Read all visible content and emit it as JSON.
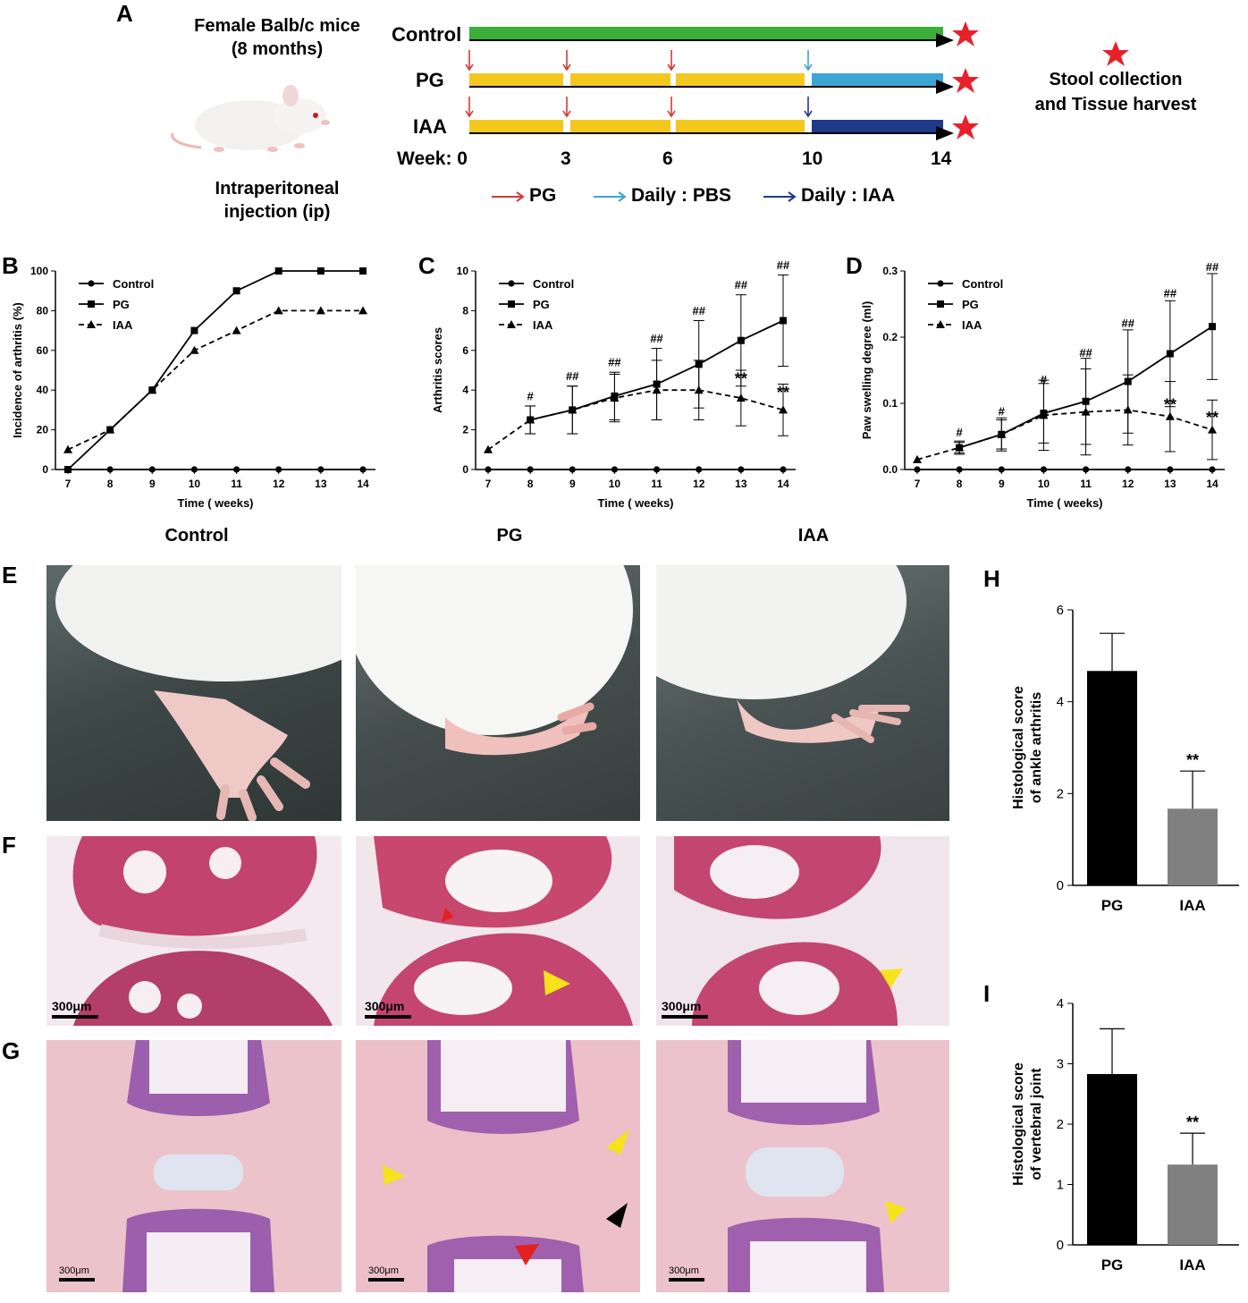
{
  "panels": {
    "a": "A",
    "b": "B",
    "c": "C",
    "d": "D",
    "e": "E",
    "f": "F",
    "g": "G",
    "h": "H",
    "i": "I"
  },
  "panel_a": {
    "mice_title_1": "Female Balb/c mice",
    "mice_title_2": "(8 months)",
    "injection_1": "Intraperitoneal",
    "injection_2": "injection (ip)",
    "rows": [
      "Control",
      "PG",
      "IAA"
    ],
    "week_label": "Week: 0",
    "weeks": [
      "3",
      "6",
      "10",
      "14"
    ],
    "star_note_1": "Stool collection",
    "star_note_2": "and Tissue harvest",
    "legend": {
      "pg": "PG",
      "pbs": "Daily : PBS",
      "iaa": "Daily : IAA"
    },
    "colors": {
      "control": "#3cae3a",
      "pg": "#f2c81f",
      "pbs": "#3ba6d4",
      "iaa": "#1f3a8a",
      "arrow_pg": "#d43a3a",
      "star": "#e8202a"
    }
  },
  "group_titles": [
    "Control",
    "PG",
    "IAA"
  ],
  "scale_bar": "300μm",
  "chart_data": [
    {
      "id": "B",
      "type": "line",
      "xlabel": "Time ( weeks)",
      "ylabel": "Incidence of arthritis (%)",
      "x": [
        7,
        8,
        9,
        10,
        11,
        12,
        13,
        14
      ],
      "ylim": [
        0,
        100
      ],
      "yticks": [
        0,
        20,
        40,
        60,
        80,
        100
      ],
      "legend_position": "top-left",
      "series": [
        {
          "name": "Control",
          "marker": "circle",
          "style": "solid",
          "values": [
            0,
            0,
            0,
            0,
            0,
            0,
            0,
            0
          ]
        },
        {
          "name": "PG",
          "marker": "square",
          "style": "solid",
          "values": [
            0,
            20,
            40,
            70,
            90,
            100,
            100,
            100
          ]
        },
        {
          "name": "IAA",
          "marker": "triangle",
          "style": "dashed",
          "values": [
            10,
            20,
            40,
            60,
            70,
            80,
            80,
            80
          ]
        }
      ]
    },
    {
      "id": "C",
      "type": "line",
      "xlabel": "Time ( weeks)",
      "ylabel": "Arthritis scores",
      "x": [
        7,
        8,
        9,
        10,
        11,
        12,
        13,
        14
      ],
      "ylim": [
        0,
        10
      ],
      "yticks": [
        0,
        2,
        4,
        6,
        8,
        10
      ],
      "legend_position": "top-left",
      "series": [
        {
          "name": "Control",
          "marker": "circle",
          "style": "solid",
          "values": [
            0,
            0,
            0,
            0,
            0,
            0,
            0,
            0
          ]
        },
        {
          "name": "PG",
          "marker": "square",
          "style": "solid",
          "values": [
            null,
            2.5,
            3.0,
            3.7,
            4.3,
            5.3,
            6.5,
            7.5
          ],
          "err": [
            null,
            0.7,
            1.2,
            1.2,
            1.8,
            2.2,
            2.3,
            2.3
          ]
        },
        {
          "name": "IAA",
          "marker": "triangle",
          "style": "dashed",
          "values": [
            1.0,
            2.5,
            3.0,
            3.6,
            4.0,
            4.0,
            3.6,
            3.0
          ],
          "err": [
            null,
            0.7,
            1.2,
            1.2,
            1.5,
            1.5,
            1.4,
            1.3
          ]
        }
      ],
      "annotations": [
        {
          "x": 8,
          "y": 3.5,
          "text": "#"
        },
        {
          "x": 9,
          "y": 4.5,
          "text": "##"
        },
        {
          "x": 10,
          "y": 5.2,
          "text": "##"
        },
        {
          "x": 11,
          "y": 6.4,
          "text": "##"
        },
        {
          "x": 12,
          "y": 7.8,
          "text": "##"
        },
        {
          "x": 13,
          "y": 9.1,
          "text": "##"
        },
        {
          "x": 14,
          "y": 10.1,
          "text": "##"
        },
        {
          "x": 13,
          "y": 4.3,
          "text": "**"
        },
        {
          "x": 14,
          "y": 3.6,
          "text": "**"
        }
      ]
    },
    {
      "id": "D",
      "type": "line",
      "xlabel": "Time ( weeks)",
      "ylabel": "Paw swelling degree (ml)",
      "x": [
        7,
        8,
        9,
        10,
        11,
        12,
        13,
        14
      ],
      "ylim": [
        0,
        0.3
      ],
      "yticks": [
        0.0,
        0.1,
        0.2,
        0.3
      ],
      "legend_position": "top-left",
      "series": [
        {
          "name": "Control",
          "marker": "circle",
          "style": "solid",
          "values": [
            0,
            0,
            0,
            0,
            0,
            0,
            0,
            0
          ]
        },
        {
          "name": "PG",
          "marker": "square",
          "style": "solid",
          "values": [
            null,
            0.033,
            0.053,
            0.085,
            0.103,
            0.133,
            0.175,
            0.216
          ],
          "err": [
            null,
            0.008,
            0.022,
            0.045,
            0.065,
            0.078,
            0.08,
            0.08
          ]
        },
        {
          "name": "IAA",
          "marker": "triangle",
          "style": "dashed",
          "values": [
            0.015,
            0.033,
            0.053,
            0.082,
            0.087,
            0.09,
            0.08,
            0.06
          ],
          "err": [
            null,
            0.01,
            0.025,
            0.053,
            0.065,
            0.053,
            0.053,
            0.045
          ]
        }
      ],
      "annotations": [
        {
          "x": 8,
          "y": 0.05,
          "text": "#"
        },
        {
          "x": 9,
          "y": 0.082,
          "text": "#"
        },
        {
          "x": 10,
          "y": 0.13,
          "text": "#"
        },
        {
          "x": 11,
          "y": 0.17,
          "text": "##"
        },
        {
          "x": 12,
          "y": 0.215,
          "text": "##"
        },
        {
          "x": 13,
          "y": 0.26,
          "text": "##"
        },
        {
          "x": 14,
          "y": 0.3,
          "text": "##"
        },
        {
          "x": 13,
          "y": 0.09,
          "text": "**"
        },
        {
          "x": 14,
          "y": 0.07,
          "text": "**"
        }
      ]
    },
    {
      "id": "H",
      "type": "bar",
      "categories": [
        "PG",
        "IAA"
      ],
      "values": [
        4.67,
        1.67
      ],
      "err": [
        0.82,
        0.82
      ],
      "ylabel_1": "Histological score",
      "ylabel_2": "of ankle arthritis",
      "ylim": [
        0,
        6
      ],
      "yticks": [
        0,
        2,
        4,
        6
      ],
      "colors": [
        "#000000",
        "#808080"
      ],
      "annotations": [
        {
          "category": "IAA",
          "text": "**"
        }
      ]
    },
    {
      "id": "I",
      "type": "bar",
      "categories": [
        "PG",
        "IAA"
      ],
      "values": [
        2.83,
        1.33
      ],
      "err": [
        0.75,
        0.52
      ],
      "ylabel_1": "Histological score",
      "ylabel_2": "of vertebral joint",
      "ylim": [
        0,
        4
      ],
      "yticks": [
        0,
        1,
        2,
        3,
        4
      ],
      "colors": [
        "#000000",
        "#808080"
      ],
      "annotations": [
        {
          "category": "IAA",
          "text": "**"
        }
      ]
    }
  ]
}
